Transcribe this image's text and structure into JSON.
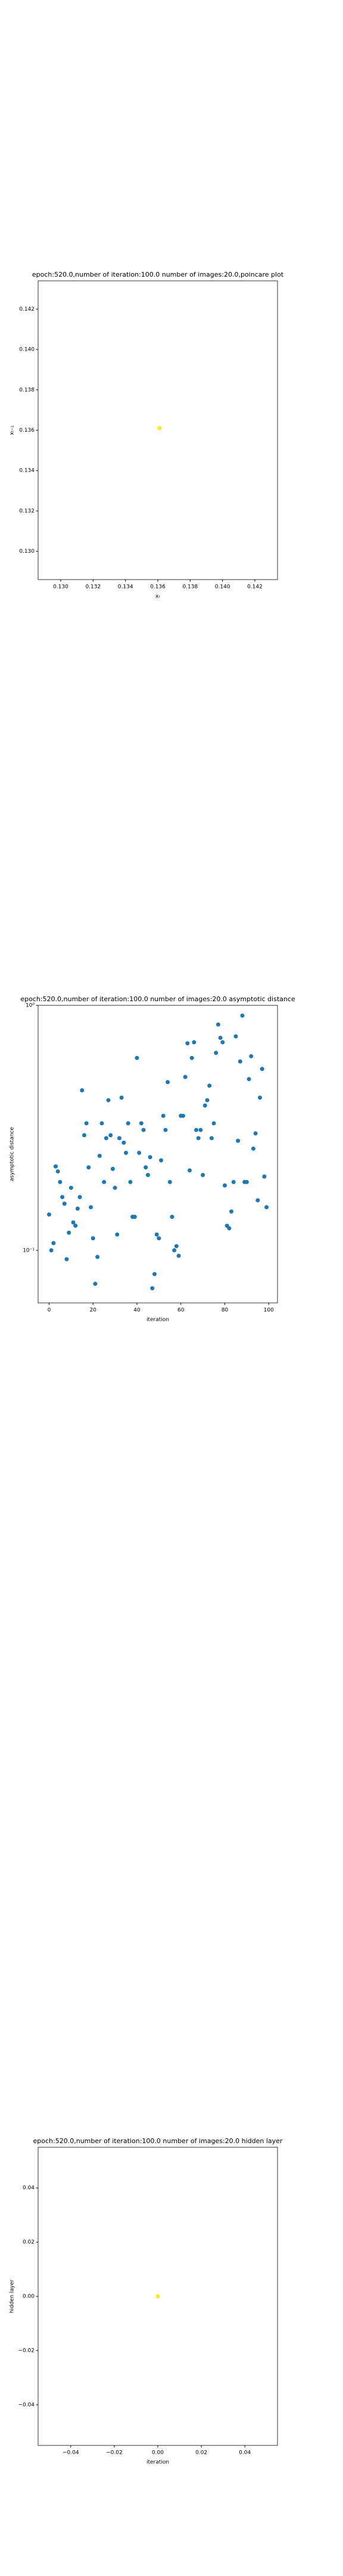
{
  "chart_data": [
    {
      "type": "scatter",
      "title": "epoch:520.0,number of iteration:100.0 number of images:20.0,poincare plot",
      "xlabel": "xₜ",
      "ylabel": "xₜ₋₁",
      "color": "#fde725",
      "x": [
        0.1361
      ],
      "values": [
        0.1361
      ],
      "xlim": [
        0.1286,
        0.1434
      ],
      "ylim": [
        0.1286,
        0.1434
      ],
      "xticks": [
        {
          "value": 0.13,
          "label": "0.130"
        },
        {
          "value": 0.132,
          "label": "0.132"
        },
        {
          "value": 0.134,
          "label": "0.134"
        },
        {
          "value": 0.136,
          "label": "0.136"
        },
        {
          "value": 0.138,
          "label": "0.138"
        },
        {
          "value": 0.14,
          "label": "0.140"
        },
        {
          "value": 0.142,
          "label": "0.142"
        }
      ],
      "yticks": [
        {
          "value": 0.13,
          "label": "0.130"
        },
        {
          "value": 0.132,
          "label": "0.132"
        },
        {
          "value": 0.134,
          "label": "0.134"
        },
        {
          "value": 0.136,
          "label": "0.136"
        },
        {
          "value": 0.138,
          "label": "0.138"
        },
        {
          "value": 0.14,
          "label": "0.140"
        },
        {
          "value": 0.142,
          "label": "0.142"
        }
      ],
      "log_y": false
    },
    {
      "type": "scatter",
      "title": "epoch:520.0,number of iteration:100.0  number of images:20.0 asymptotic distance",
      "xlabel": "iteration",
      "ylabel": "asymptotic distance",
      "color": "#1f77b4",
      "x": [
        0,
        1,
        2,
        3,
        4,
        5,
        6,
        7,
        8,
        9,
        10,
        11,
        12,
        13,
        14,
        15,
        16,
        17,
        18,
        19,
        20,
        21,
        22,
        23,
        24,
        25,
        26,
        27,
        28,
        29,
        30,
        31,
        32,
        33,
        34,
        35,
        36,
        37,
        38,
        39,
        40,
        41,
        42,
        43,
        44,
        45,
        46,
        47,
        48,
        49,
        50,
        51,
        52,
        53,
        54,
        55,
        56,
        57,
        58,
        59,
        60,
        61,
        62,
        63,
        64,
        65,
        66,
        67,
        68,
        69,
        70,
        71,
        72,
        73,
        74,
        75,
        76,
        77,
        78,
        79,
        80,
        81,
        82,
        83,
        84,
        85,
        86,
        87,
        88,
        89,
        90,
        91,
        92,
        93,
        94,
        95,
        96,
        97,
        98,
        99
      ],
      "values": [
        0.14,
        0.1,
        0.107,
        0.22,
        0.21,
        0.19,
        0.165,
        0.155,
        0.092,
        0.118,
        0.18,
        0.13,
        0.126,
        0.148,
        0.165,
        0.45,
        0.295,
        0.33,
        0.218,
        0.15,
        0.112,
        0.073,
        0.094,
        0.243,
        0.33,
        0.19,
        0.287,
        0.41,
        0.295,
        0.215,
        0.18,
        0.116,
        0.287,
        0.42,
        0.275,
        0.25,
        0.33,
        0.19,
        0.137,
        0.137,
        0.61,
        0.25,
        0.33,
        0.31,
        0.218,
        0.203,
        0.24,
        0.07,
        0.08,
        0.116,
        0.112,
        0.233,
        0.354,
        0.31,
        0.486,
        0.19,
        0.137,
        0.1,
        0.104,
        0.095,
        0.354,
        0.354,
        0.51,
        0.7,
        0.212,
        0.61,
        0.707,
        0.31,
        0.287,
        0.31,
        0.203,
        0.39,
        0.41,
        0.47,
        0.287,
        0.33,
        0.64,
        0.835,
        0.737,
        0.707,
        0.184,
        0.126,
        0.123,
        0.144,
        0.19,
        0.747,
        0.28,
        0.59,
        0.908,
        0.19,
        0.19,
        0.5,
        0.62,
        0.26,
        0.3,
        0.16,
        0.42,
        0.55,
        0.2,
        0.15
      ],
      "xlim": [
        -5,
        104
      ],
      "ylim": [
        0.061,
        1.0
      ],
      "xticks": [
        0,
        20,
        40,
        60,
        80,
        100
      ],
      "yticks": [
        {
          "value": 0.1,
          "label": "10⁻¹"
        },
        {
          "value": 1,
          "label": "10⁰"
        }
      ],
      "log_y": true
    },
    {
      "type": "scatter",
      "title": "epoch:520.0,number of iteration:100.0  number of images:20.0 hidden layer",
      "xlabel": "iteration",
      "ylabel": "hidden layer",
      "color": "#fde725",
      "x": [
        0
      ],
      "values": [
        0
      ],
      "xlim": [
        -0.055,
        0.055
      ],
      "ylim": [
        -0.055,
        0.055
      ],
      "xticks": [
        {
          "value": -0.04,
          "label": "−0.04"
        },
        {
          "value": -0.02,
          "label": "−0.02"
        },
        {
          "value": 0,
          "label": "0.00"
        },
        {
          "value": 0.02,
          "label": "0.02"
        },
        {
          "value": 0.04,
          "label": "0.04"
        }
      ],
      "yticks": [
        {
          "value": -0.04,
          "label": "−0.04"
        },
        {
          "value": -0.02,
          "label": "−0.02"
        },
        {
          "value": 0,
          "label": "0.00"
        },
        {
          "value": 0.02,
          "label": "0.02"
        },
        {
          "value": 0.04,
          "label": "0.04"
        }
      ],
      "log_y": false
    }
  ]
}
